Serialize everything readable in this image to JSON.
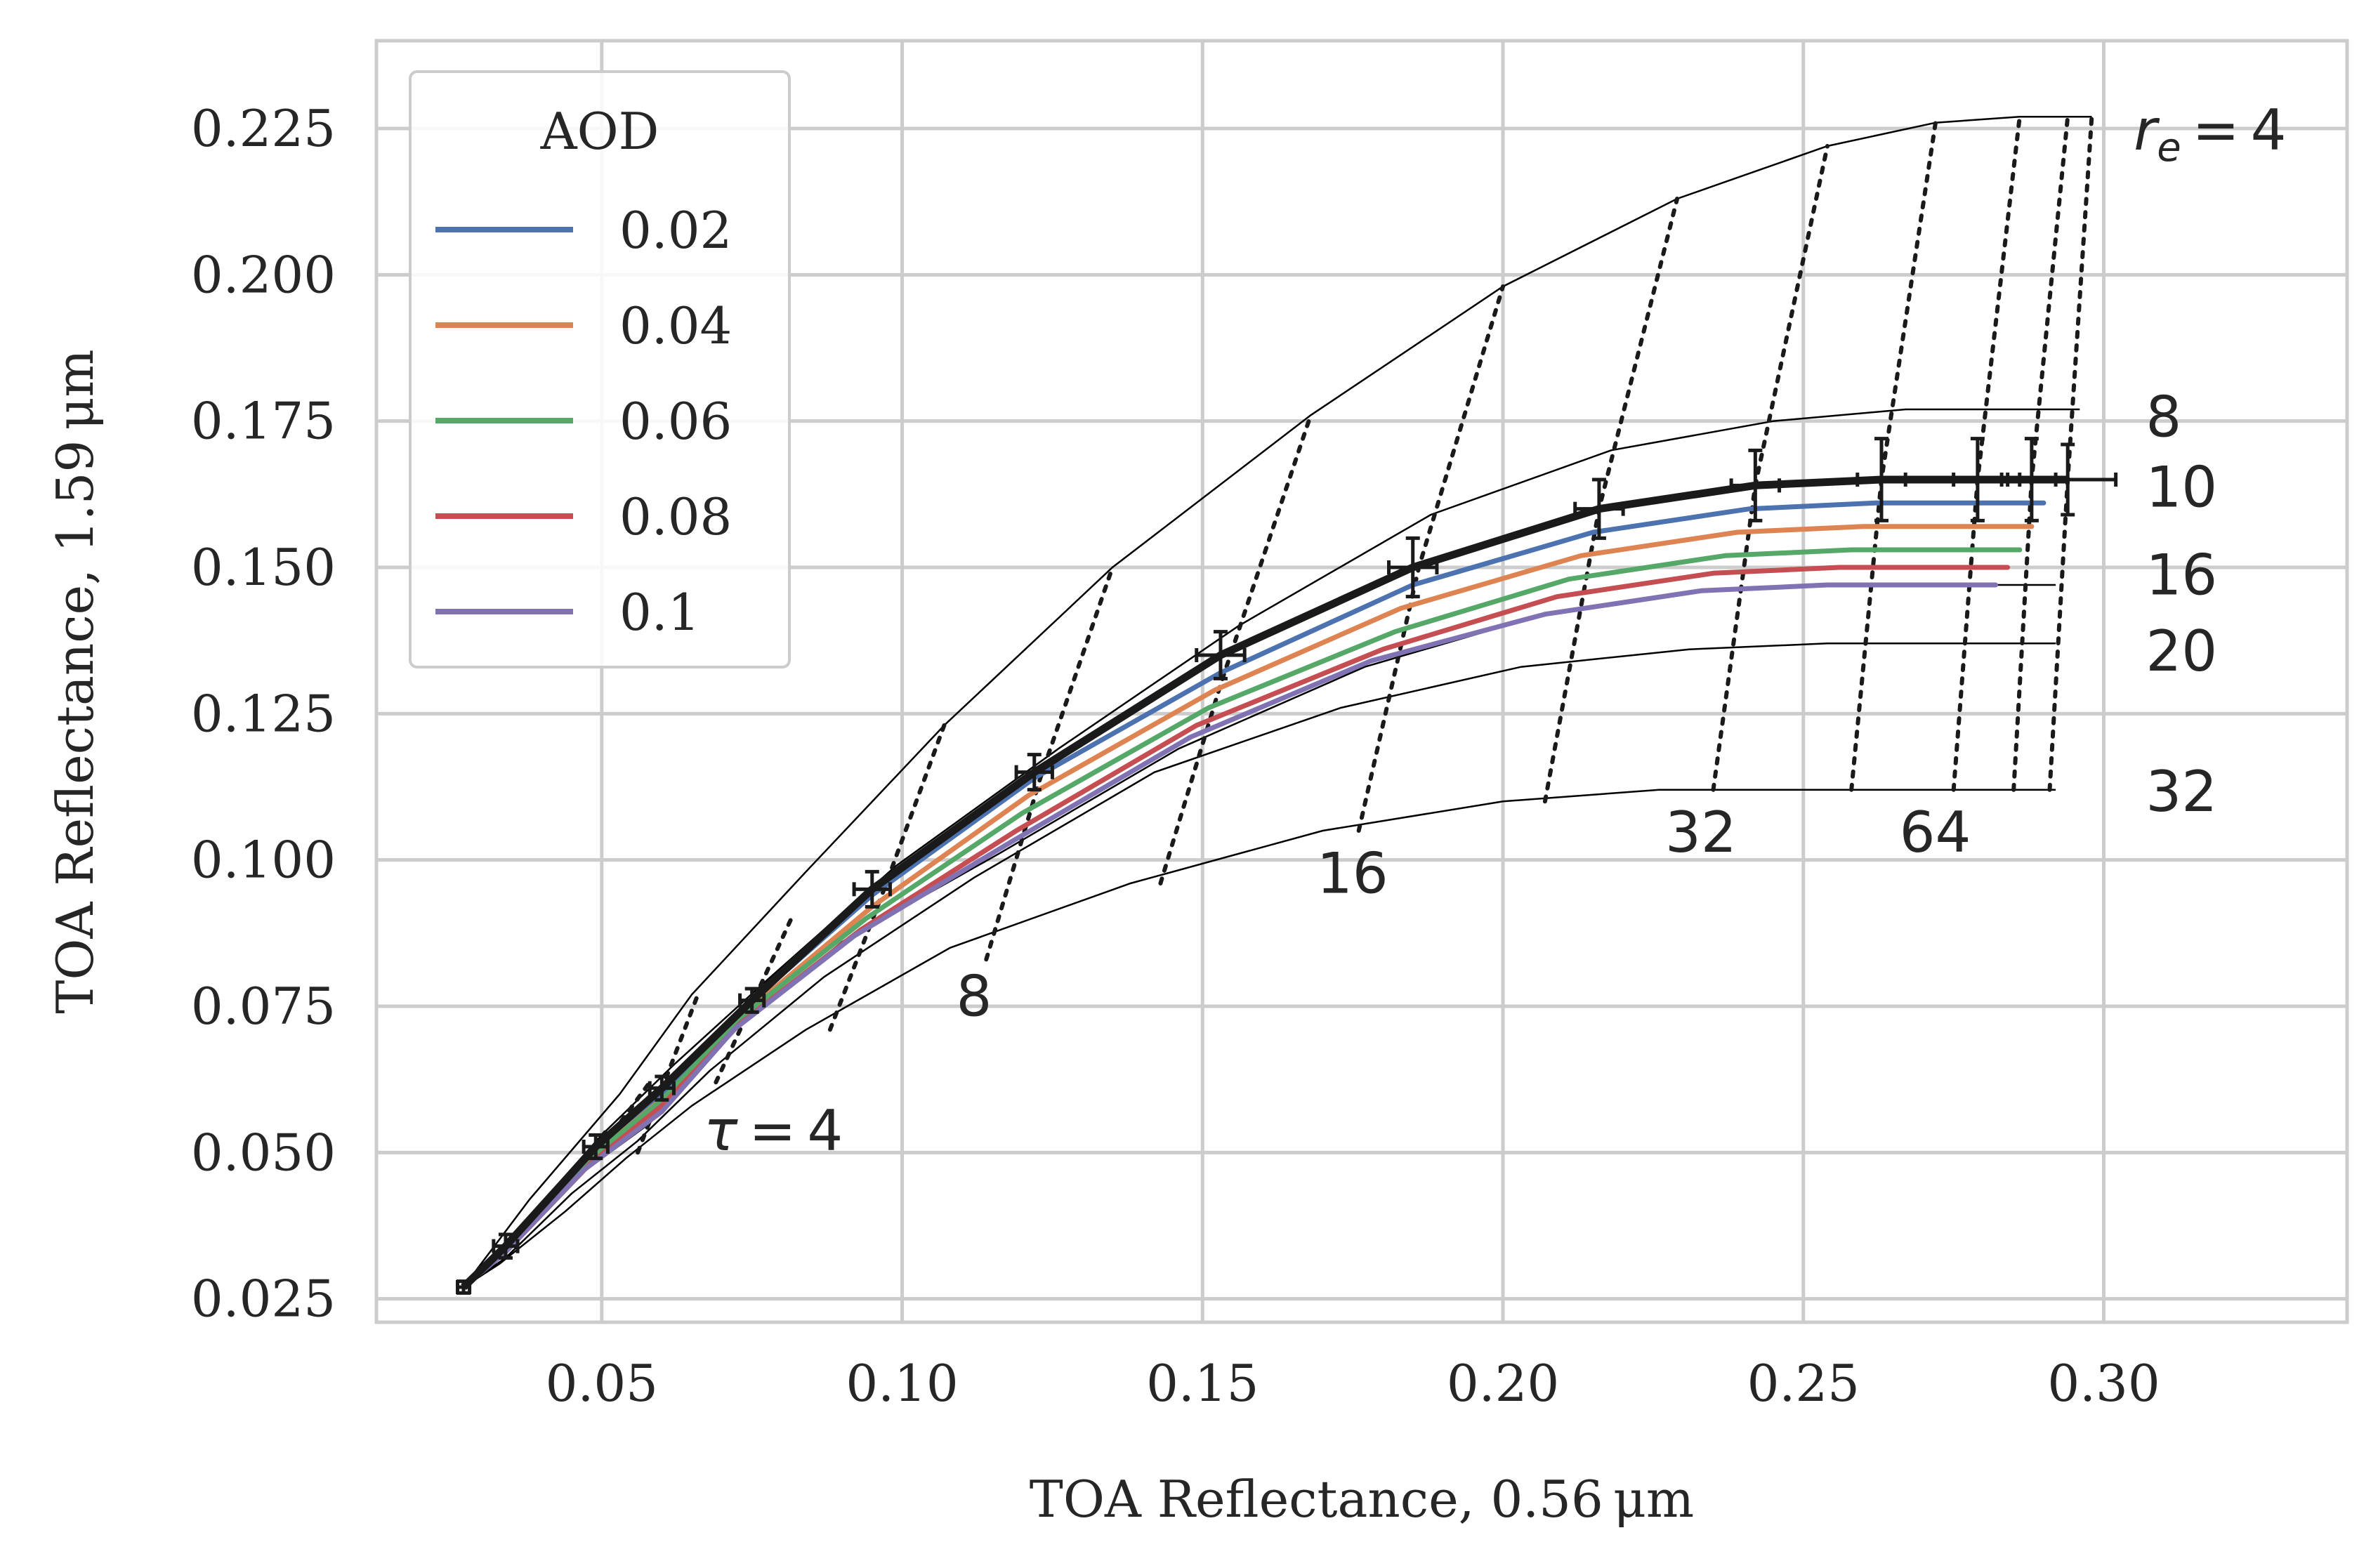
{
  "chart_data": {
    "type": "line",
    "xlabel": "TOA Reflectance, 0.56 μm",
    "ylabel": "TOA Reflectance, 1.59 μm",
    "xlim": [
      0.0125,
      0.3405
    ],
    "ylim": [
      0.021,
      0.24
    ],
    "xticks": [
      0.05,
      0.1,
      0.15,
      0.2,
      0.25,
      0.3
    ],
    "xtick_labels": [
      "0.05",
      "0.10",
      "0.15",
      "0.20",
      "0.25",
      "0.30"
    ],
    "yticks": [
      0.025,
      0.05,
      0.075,
      0.1,
      0.125,
      0.15,
      0.175,
      0.2,
      0.225
    ],
    "ytick_labels": [
      "0.025",
      "0.050",
      "0.075",
      "0.100",
      "0.125",
      "0.150",
      "0.175",
      "0.200",
      "0.225"
    ],
    "grid": true,
    "legend": {
      "title": "AOD",
      "placement": "top-left",
      "entries": [
        {
          "label": "0.02",
          "color": "#4c72b0"
        },
        {
          "label": "0.04",
          "color": "#dd8452"
        },
        {
          "label": "0.06",
          "color": "#55a868"
        },
        {
          "label": "0.08",
          "color": "#c44e52"
        },
        {
          "label": "0.1",
          "color": "#8172b3"
        }
      ]
    },
    "series": [
      {
        "name": "0.02",
        "color": "#4c72b0",
        "points": [
          [
            0.027,
            0.027
          ],
          [
            0.034,
            0.034
          ],
          [
            0.048,
            0.05
          ],
          [
            0.061,
            0.061
          ],
          [
            0.074,
            0.075
          ],
          [
            0.095,
            0.094
          ],
          [
            0.122,
            0.114
          ],
          [
            0.153,
            0.132
          ],
          [
            0.185,
            0.147
          ],
          [
            0.215,
            0.156
          ],
          [
            0.241,
            0.16
          ],
          [
            0.262,
            0.161
          ],
          [
            0.278,
            0.161
          ],
          [
            0.29,
            0.161
          ]
        ]
      },
      {
        "name": "0.04",
        "color": "#dd8452",
        "points": [
          [
            0.027,
            0.027
          ],
          [
            0.034,
            0.034
          ],
          [
            0.048,
            0.049
          ],
          [
            0.061,
            0.06
          ],
          [
            0.074,
            0.074
          ],
          [
            0.095,
            0.092
          ],
          [
            0.121,
            0.111
          ],
          [
            0.152,
            0.129
          ],
          [
            0.183,
            0.143
          ],
          [
            0.213,
            0.152
          ],
          [
            0.239,
            0.156
          ],
          [
            0.26,
            0.157
          ],
          [
            0.276,
            0.157
          ],
          [
            0.288,
            0.157
          ]
        ]
      },
      {
        "name": "0.06",
        "color": "#55a868",
        "points": [
          [
            0.027,
            0.027
          ],
          [
            0.034,
            0.034
          ],
          [
            0.048,
            0.049
          ],
          [
            0.06,
            0.059
          ],
          [
            0.073,
            0.073
          ],
          [
            0.094,
            0.09
          ],
          [
            0.12,
            0.108
          ],
          [
            0.151,
            0.126
          ],
          [
            0.182,
            0.139
          ],
          [
            0.211,
            0.148
          ],
          [
            0.237,
            0.152
          ],
          [
            0.258,
            0.153
          ],
          [
            0.274,
            0.153
          ],
          [
            0.286,
            0.153
          ]
        ]
      },
      {
        "name": "0.08",
        "color": "#c44e52",
        "points": [
          [
            0.027,
            0.027
          ],
          [
            0.034,
            0.033
          ],
          [
            0.048,
            0.048
          ],
          [
            0.06,
            0.058
          ],
          [
            0.073,
            0.072
          ],
          [
            0.093,
            0.088
          ],
          [
            0.119,
            0.105
          ],
          [
            0.149,
            0.123
          ],
          [
            0.18,
            0.136
          ],
          [
            0.209,
            0.145
          ],
          [
            0.235,
            0.149
          ],
          [
            0.256,
            0.15
          ],
          [
            0.272,
            0.15
          ],
          [
            0.284,
            0.15
          ]
        ]
      },
      {
        "name": "0.1",
        "color": "#8172b3",
        "points": [
          [
            0.027,
            0.027
          ],
          [
            0.034,
            0.033
          ],
          [
            0.047,
            0.047
          ],
          [
            0.06,
            0.057
          ],
          [
            0.072,
            0.071
          ],
          [
            0.092,
            0.087
          ],
          [
            0.118,
            0.103
          ],
          [
            0.148,
            0.121
          ],
          [
            0.178,
            0.134
          ],
          [
            0.207,
            0.142
          ],
          [
            0.233,
            0.146
          ],
          [
            0.254,
            0.147
          ],
          [
            0.27,
            0.147
          ],
          [
            0.282,
            0.147
          ]
        ]
      }
    ],
    "observation": {
      "color": "#1a1a1a",
      "points": [
        [
          0.027,
          0.027
        ],
        [
          0.034,
          0.034
        ],
        [
          0.049,
          0.051
        ],
        [
          0.06,
          0.061
        ],
        [
          0.075,
          0.076
        ],
        [
          0.095,
          0.095
        ],
        [
          0.122,
          0.115
        ],
        [
          0.153,
          0.135
        ],
        [
          0.185,
          0.15
        ],
        [
          0.216,
          0.16
        ],
        [
          0.242,
          0.164
        ],
        [
          0.263,
          0.165
        ],
        [
          0.279,
          0.165
        ],
        [
          0.288,
          0.165
        ],
        [
          0.294,
          0.165
        ]
      ],
      "xerr": [
        0.001,
        0.002,
        0.002,
        0.002,
        0.002,
        0.003,
        0.003,
        0.004,
        0.004,
        0.004,
        0.004,
        0.004,
        0.004,
        0.004,
        0.008
      ],
      "yerr": [
        0.001,
        0.002,
        0.002,
        0.002,
        0.002,
        0.003,
        0.003,
        0.004,
        0.005,
        0.005,
        0.006,
        0.007,
        0.007,
        0.007,
        0.006
      ]
    },
    "lut_grid": {
      "re_values": [
        4,
        8,
        10,
        16,
        20,
        32
      ],
      "tau_values": [
        4,
        8,
        16,
        32,
        64
      ],
      "re_curves": [
        {
          "re": 4,
          "points": [
            [
              0.027,
              0.027
            ],
            [
              0.038,
              0.042
            ],
            [
              0.053,
              0.06
            ],
            [
              0.065,
              0.077
            ],
            [
              0.084,
              0.098
            ],
            [
              0.107,
              0.123
            ],
            [
              0.135,
              0.15
            ],
            [
              0.168,
              0.176
            ],
            [
              0.2,
              0.198
            ],
            [
              0.229,
              0.213
            ],
            [
              0.254,
              0.222
            ],
            [
              0.272,
              0.226
            ],
            [
              0.286,
              0.227
            ],
            [
              0.294,
              0.227
            ],
            [
              0.298,
              0.227
            ]
          ]
        },
        {
          "re": 8,
          "points": [
            [
              0.027,
              0.027
            ],
            [
              0.037,
              0.038
            ],
            [
              0.05,
              0.053
            ],
            [
              0.062,
              0.065
            ],
            [
              0.077,
              0.079
            ],
            [
              0.099,
              0.099
            ],
            [
              0.126,
              0.119
            ],
            [
              0.156,
              0.14
            ],
            [
              0.188,
              0.159
            ],
            [
              0.218,
              0.17
            ],
            [
              0.245,
              0.175
            ],
            [
              0.267,
              0.177
            ],
            [
              0.284,
              0.177
            ],
            [
              0.296,
              0.177
            ]
          ]
        },
        {
          "re": 16,
          "points": [
            [
              0.027,
              0.027
            ],
            [
              0.034,
              0.033
            ],
            [
              0.046,
              0.046
            ],
            [
              0.058,
              0.055
            ],
            [
              0.07,
              0.069
            ],
            [
              0.09,
              0.086
            ],
            [
              0.116,
              0.101
            ],
            [
              0.146,
              0.119
            ],
            [
              0.177,
              0.133
            ],
            [
              0.207,
              0.142
            ],
            [
              0.234,
              0.146
            ],
            [
              0.256,
              0.147
            ],
            [
              0.273,
              0.147
            ],
            [
              0.292,
              0.147
            ]
          ]
        },
        {
          "re": 20,
          "points": [
            [
              0.027,
              0.027
            ],
            [
              0.034,
              0.032
            ],
            [
              0.045,
              0.043
            ],
            [
              0.056,
              0.052
            ],
            [
              0.068,
              0.064
            ],
            [
              0.087,
              0.08
            ],
            [
              0.112,
              0.097
            ],
            [
              0.142,
              0.115
            ],
            [
              0.173,
              0.126
            ],
            [
              0.203,
              0.133
            ],
            [
              0.231,
              0.136
            ],
            [
              0.254,
              0.137
            ],
            [
              0.271,
              0.137
            ],
            [
              0.292,
              0.137
            ]
          ]
        },
        {
          "re": 32,
          "points": [
            [
              0.027,
              0.027
            ],
            [
              0.033,
              0.031
            ],
            [
              0.044,
              0.04
            ],
            [
              0.054,
              0.049
            ],
            [
              0.065,
              0.058
            ],
            [
              0.084,
              0.071
            ],
            [
              0.108,
              0.085
            ],
            [
              0.138,
              0.096
            ],
            [
              0.17,
              0.105
            ],
            [
              0.2,
              0.11
            ],
            [
              0.226,
              0.112
            ],
            [
              0.249,
              0.112
            ],
            [
              0.268,
              0.112
            ],
            [
              0.292,
              0.112
            ]
          ]
        }
      ],
      "tau_lines": [
        {
          "points": [
            [
              0.043,
              0.044
            ],
            [
              0.051,
              0.054
            ]
          ]
        },
        {
          "points": [
            [
              0.048,
              0.048
            ],
            [
              0.058,
              0.062
            ]
          ]
        },
        {
          "points": [
            [
              0.056,
              0.05
            ],
            [
              0.066,
              0.077
            ]
          ]
        },
        {
          "points": [
            [
              0.069,
              0.062
            ],
            [
              0.082,
              0.091
            ]
          ]
        },
        {
          "points": [
            [
              0.088,
              0.071
            ],
            [
              0.097,
              0.095
            ],
            [
              0.107,
              0.123
            ]
          ]
        },
        {
          "points": [
            [
              0.114,
              0.083
            ],
            [
              0.123,
              0.114
            ],
            [
              0.135,
              0.15
            ]
          ]
        },
        {
          "points": [
            [
              0.143,
              0.096
            ],
            [
              0.153,
              0.13
            ],
            [
              0.168,
              0.176
            ]
          ]
        },
        {
          "points": [
            [
              0.176,
              0.105
            ],
            [
              0.186,
              0.15
            ],
            [
              0.2,
              0.198
            ]
          ]
        },
        {
          "points": [
            [
              0.207,
              0.11
            ],
            [
              0.216,
              0.16
            ],
            [
              0.229,
              0.213
            ]
          ]
        },
        {
          "points": [
            [
              0.235,
              0.112
            ],
            [
              0.242,
              0.164
            ],
            [
              0.254,
              0.222
            ]
          ]
        },
        {
          "points": [
            [
              0.258,
              0.112
            ],
            [
              0.263,
              0.165
            ],
            [
              0.272,
              0.226
            ]
          ]
        },
        {
          "points": [
            [
              0.275,
              0.112
            ],
            [
              0.279,
              0.165
            ],
            [
              0.286,
              0.227
            ]
          ]
        },
        {
          "points": [
            [
              0.285,
              0.112
            ],
            [
              0.288,
              0.165
            ],
            [
              0.294,
              0.227
            ]
          ]
        },
        {
          "points": [
            [
              0.291,
              0.112
            ],
            [
              0.294,
              0.165
            ],
            [
              0.298,
              0.227
            ]
          ]
        }
      ],
      "annotations": [
        {
          "text": "8",
          "x": 0.307,
          "y": 0.1755
        },
        {
          "text": "10",
          "x": 0.307,
          "y": 0.1635
        },
        {
          "text": "16",
          "x": 0.307,
          "y": 0.1485
        },
        {
          "text": "20",
          "x": 0.307,
          "y": 0.1355
        },
        {
          "text": "32",
          "x": 0.307,
          "y": 0.1115
        },
        {
          "text": "8",
          "x": 0.109,
          "y": 0.0765
        },
        {
          "text": "16",
          "x": 0.169,
          "y": 0.0975
        },
        {
          "text": "32",
          "x": 0.227,
          "y": 0.1045
        },
        {
          "text": "64",
          "x": 0.266,
          "y": 0.1045
        }
      ],
      "re_math_label": {
        "x": 0.305,
        "y": 0.2245,
        "var": "r",
        "sub": "e",
        "rest": " = 4"
      },
      "tau_math_label": {
        "x": 0.067,
        "y": 0.0535,
        "var": "τ",
        "rest": " = 4"
      }
    }
  }
}
